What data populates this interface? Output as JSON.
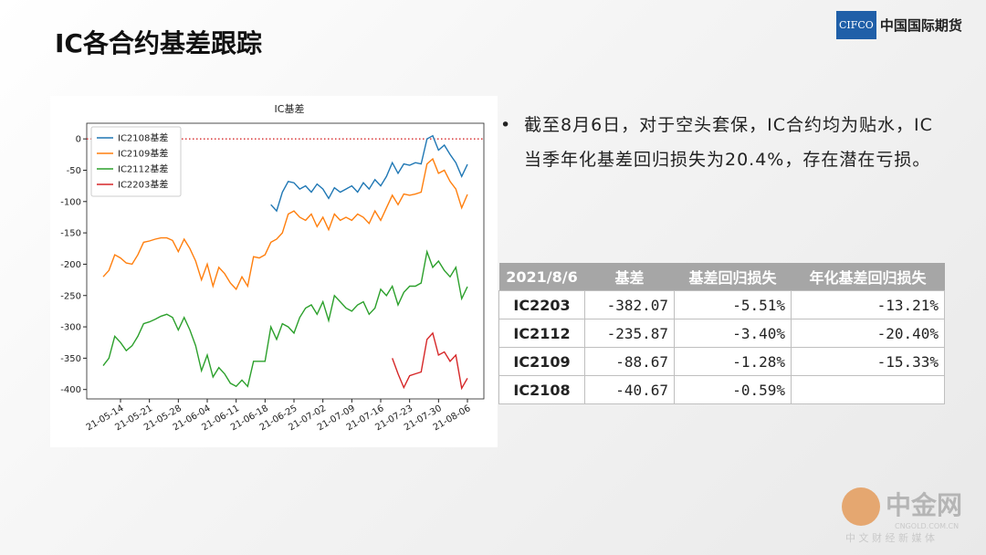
{
  "logo": {
    "mark": "CIFCO",
    "name": "中国国际期货"
  },
  "title": "IC各合约基差跟踪",
  "chart_data": {
    "type": "line",
    "title": "IC基差",
    "categories": [
      null,
      null,
      null,
      "21-05-14",
      null,
      null,
      null,
      null,
      "21-05-21",
      null,
      null,
      null,
      null,
      "21-05-28",
      null,
      null,
      null,
      null,
      "21-06-04",
      null,
      null,
      null,
      null,
      "21-06-11",
      null,
      null,
      null,
      null,
      "21-06-18",
      null,
      null,
      null,
      null,
      "21-06-25",
      null,
      null,
      null,
      null,
      "21-07-02",
      null,
      null,
      null,
      null,
      "21-07-09",
      null,
      null,
      null,
      null,
      "21-07-16",
      null,
      null,
      null,
      null,
      "21-07-23",
      null,
      null,
      null,
      null,
      "21-07-30",
      null,
      null,
      null,
      null,
      "21-08-06"
    ],
    "ylim": [
      -415,
      25
    ],
    "yticks": [
      0,
      -50,
      -100,
      -150,
      -200,
      -250,
      -300,
      -350,
      -400
    ],
    "reference_line": {
      "value": 0,
      "color": "#d62728"
    },
    "legend": "upper left",
    "series": [
      {
        "name": "IC2108基差",
        "color": "#1f77b4",
        "values": [
          null,
          null,
          null,
          null,
          null,
          null,
          null,
          null,
          null,
          null,
          null,
          null,
          null,
          null,
          null,
          null,
          null,
          null,
          null,
          null,
          null,
          null,
          null,
          null,
          null,
          null,
          null,
          null,
          null,
          -105,
          -115,
          -85,
          -68,
          -70,
          -80,
          -75,
          -85,
          -72,
          -80,
          -95,
          -78,
          -85,
          -80,
          -75,
          -85,
          -70,
          -80,
          -65,
          -75,
          -60,
          -38,
          -55,
          -40,
          -42,
          -38,
          -40,
          0,
          5,
          -18,
          -10,
          -25,
          -38,
          -60,
          -40.67
        ]
      },
      {
        "name": "IC2109基差",
        "color": "#ff7f0e",
        "values": [
          -220,
          -210,
          -185,
          -190,
          -198,
          -200,
          -185,
          -165,
          -163,
          -160,
          -158,
          -158,
          -162,
          -180,
          -160,
          -175,
          -195,
          -225,
          -200,
          -235,
          -205,
          -215,
          -230,
          -240,
          -220,
          -235,
          -188,
          -190,
          -185,
          -165,
          -160,
          -150,
          -120,
          -115,
          -125,
          -130,
          -120,
          -140,
          -125,
          -145,
          -120,
          -130,
          -125,
          -130,
          -120,
          -125,
          -135,
          -115,
          -130,
          -110,
          -90,
          -105,
          -88,
          -90,
          -88,
          -85,
          -40,
          -32,
          -55,
          -50,
          -68,
          -80,
          -110,
          -88.67
        ]
      },
      {
        "name": "IC2112基差",
        "color": "#2ca02c",
        "values": [
          -362,
          -350,
          -315,
          -325,
          -338,
          -330,
          -315,
          -295,
          -292,
          -288,
          -283,
          -280,
          -285,
          -305,
          -285,
          -305,
          -330,
          -370,
          -345,
          -380,
          -365,
          -375,
          -390,
          -395,
          -385,
          -395,
          -355,
          -355,
          -355,
          -300,
          -320,
          -295,
          -300,
          -310,
          -285,
          -270,
          -265,
          -280,
          -260,
          -290,
          -250,
          -260,
          -270,
          -275,
          -265,
          -260,
          -280,
          -270,
          -240,
          -250,
          -235,
          -265,
          -245,
          -235,
          -235,
          -230,
          -180,
          -205,
          -195,
          -210,
          -220,
          -205,
          -255,
          -235.87
        ]
      },
      {
        "name": "IC2203基差",
        "color": "#d62728",
        "values": [
          null,
          null,
          null,
          null,
          null,
          null,
          null,
          null,
          null,
          null,
          null,
          null,
          null,
          null,
          null,
          null,
          null,
          null,
          null,
          null,
          null,
          null,
          null,
          null,
          null,
          null,
          null,
          null,
          null,
          null,
          null,
          null,
          null,
          null,
          null,
          null,
          null,
          null,
          null,
          null,
          null,
          null,
          null,
          null,
          null,
          null,
          null,
          null,
          null,
          null,
          -350,
          -375,
          -397,
          -378,
          -375,
          -372,
          -320,
          -310,
          -345,
          -340,
          -355,
          -345,
          -398,
          -382.07
        ]
      }
    ]
  },
  "bullet": "截至8月6日，对于空头套保，IC合约均为贴水，IC当季年化基差回归损失为20.4%，存在潜在亏损。",
  "table": {
    "header": [
      "2021/8/6",
      "基差",
      "基差回归损失",
      "年化基差回归损失"
    ],
    "rows": [
      [
        "IC2203",
        "-382.07",
        "-5.51%",
        "-13.21%"
      ],
      [
        "IC2112",
        "-235.87",
        "-3.40%",
        "-20.40%"
      ],
      [
        "IC2109",
        "-88.67",
        "-1.28%",
        "-15.33%"
      ],
      [
        "IC2108",
        "-40.67",
        "-0.59%"
      ]
    ]
  },
  "watermark": {
    "name": "中金网",
    "site": "CNGOLD.COM.CN",
    "slogan": "中 文 财 经 新 媒 体"
  }
}
